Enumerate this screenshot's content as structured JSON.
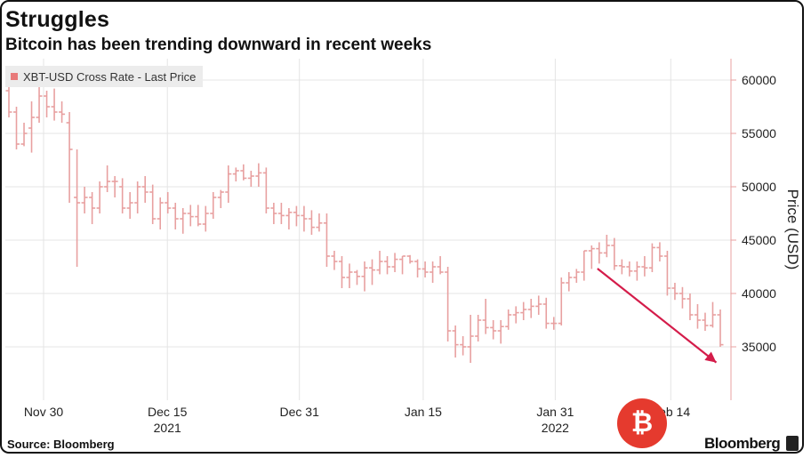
{
  "header": {
    "title": "Struggles",
    "subtitle": "Bitcoin has been trending downward in recent weeks"
  },
  "legend": {
    "label": "XBT-USD Cross Rate - Last Price",
    "color": "#e87a7a"
  },
  "footer": {
    "source": "Source: Bloomberg",
    "brand": "Bloomberg"
  },
  "watermark": {
    "symbol": "₿",
    "color": "#e53a2e"
  },
  "chart_data": {
    "type": "ohlc",
    "title": "Struggles",
    "subtitle": "Bitcoin has been trending downward in recent weeks",
    "ylabel": "Price (USD)",
    "ylim": [
      30000,
      62000
    ],
    "yticks": [
      35000,
      40000,
      45000,
      50000,
      55000,
      60000
    ],
    "xticks": [
      {
        "label": "Nov 30",
        "day": 0
      },
      {
        "label": "Dec 15",
        "day": 15,
        "year": "2021"
      },
      {
        "label": "Dec 31",
        "day": 31
      },
      {
        "label": "Jan 15",
        "day": 46
      },
      {
        "label": "Jan 31",
        "day": 62,
        "year": "2022"
      },
      {
        "label": "Feb 14",
        "day": 76
      }
    ],
    "series_color": "#e8a0a0",
    "ohlc": [
      [
        59000,
        59500,
        56500,
        57000
      ],
      [
        57000,
        57500,
        53500,
        54000
      ],
      [
        54000,
        56000,
        53800,
        55000
      ],
      [
        55500,
        58000,
        53200,
        56500
      ],
      [
        56500,
        59500,
        56000,
        58500
      ],
      [
        58500,
        59000,
        56500,
        57500
      ],
      [
        57500,
        59200,
        56200,
        57000
      ],
      [
        57000,
        58000,
        56000,
        56800
      ],
      [
        56000,
        57000,
        48500,
        53500
      ],
      [
        49000,
        53500,
        42500,
        48500
      ],
      [
        48500,
        50000,
        47500,
        49000
      ],
      [
        49000,
        49500,
        46500,
        48000
      ],
      [
        48000,
        50500,
        47500,
        50000
      ],
      [
        50000,
        52000,
        49500,
        50500
      ],
      [
        50500,
        51000,
        49000,
        50500
      ],
      [
        50000,
        50800,
        47500,
        48000
      ],
      [
        48000,
        49500,
        47000,
        48500
      ],
      [
        48500,
        50500,
        47500,
        50000
      ],
      [
        50000,
        51000,
        48500,
        49500
      ],
      [
        49500,
        50200,
        46500,
        47000
      ],
      [
        47000,
        49000,
        46000,
        48500
      ],
      [
        48500,
        49500,
        47500,
        48000
      ],
      [
        48000,
        48500,
        46000,
        47000
      ],
      [
        47000,
        48000,
        45600,
        47500
      ],
      [
        47500,
        48300,
        46300,
        47200
      ],
      [
        47200,
        48300,
        46300,
        46500
      ],
      [
        46500,
        48200,
        45800,
        47500
      ],
      [
        47500,
        49500,
        47000,
        49000
      ],
      [
        49000,
        49700,
        48000,
        49500
      ],
      [
        49500,
        52000,
        48500,
        51200
      ],
      [
        51200,
        51800,
        50500,
        51500
      ],
      [
        51500,
        52100,
        50600,
        50800
      ],
      [
        50800,
        51500,
        50000,
        51000
      ],
      [
        51000,
        52200,
        50000,
        51300
      ],
      [
        51300,
        51800,
        47500,
        48000
      ],
      [
        48000,
        48500,
        46500,
        47500
      ],
      [
        47500,
        48500,
        46500,
        47300
      ],
      [
        47300,
        48000,
        46000,
        47600
      ],
      [
        47600,
        48200,
        46300,
        47300
      ],
      [
        47300,
        48200,
        45800,
        47000
      ],
      [
        47000,
        47800,
        45500,
        46200
      ],
      [
        46200,
        47500,
        45800,
        46600
      ],
      [
        46600,
        47500,
        42500,
        43500
      ],
      [
        43500,
        44000,
        42200,
        43000
      ],
      [
        43000,
        43500,
        40500,
        41500
      ],
      [
        41500,
        42800,
        40500,
        42000
      ],
      [
        42000,
        42200,
        40800,
        41600
      ],
      [
        41600,
        43000,
        40200,
        42400
      ],
      [
        42400,
        43200,
        40800,
        42200
      ],
      [
        42200,
        44000,
        41800,
        43000
      ],
      [
        43000,
        43500,
        41800,
        42500
      ],
      [
        42500,
        43800,
        42000,
        43200
      ],
      [
        43200,
        43500,
        41800,
        43500
      ],
      [
        43500,
        43600,
        42800,
        43000
      ],
      [
        43000,
        43200,
        41500,
        42300
      ],
      [
        42300,
        43000,
        41500,
        42000
      ],
      [
        42000,
        43000,
        41000,
        42500
      ],
      [
        42500,
        43500,
        41800,
        42000
      ],
      [
        42000,
        42500,
        35500,
        36500
      ],
      [
        36500,
        37000,
        34000,
        35200
      ],
      [
        35200,
        36000,
        34200,
        35000
      ],
      [
        35000,
        38000,
        33500,
        36000
      ],
      [
        36000,
        38000,
        35500,
        37500
      ],
      [
        37500,
        39500,
        36200,
        36800
      ],
      [
        36800,
        37500,
        35700,
        36500
      ],
      [
        36500,
        37500,
        35300,
        36900
      ],
      [
        36900,
        38500,
        36600,
        38000
      ],
      [
        38000,
        38800,
        37200,
        38200
      ],
      [
        38200,
        39200,
        37500,
        38500
      ],
      [
        38500,
        39500,
        37700,
        38800
      ],
      [
        38800,
        39800,
        38000,
        39000
      ],
      [
        39000,
        39600,
        36700,
        37200
      ],
      [
        37200,
        37800,
        36600,
        37200
      ],
      [
        37200,
        41500,
        37000,
        41000
      ],
      [
        41000,
        42000,
        40200,
        41500
      ],
      [
        41500,
        42300,
        41000,
        42000
      ],
      [
        42000,
        44000,
        41200,
        44000
      ],
      [
        44000,
        44500,
        42300,
        44200
      ],
      [
        44200,
        44800,
        42800,
        43800
      ],
      [
        43800,
        45500,
        43400,
        44500
      ],
      [
        44500,
        45200,
        42200,
        42600
      ],
      [
        42600,
        43200,
        41800,
        42500
      ],
      [
        42500,
        43000,
        41600,
        42100
      ],
      [
        42100,
        43000,
        41200,
        42500
      ],
      [
        42500,
        43500,
        41600,
        42400
      ],
      [
        42400,
        44700,
        42000,
        44300
      ],
      [
        44300,
        44800,
        43000,
        43500
      ],
      [
        43500,
        44000,
        39800,
        40500
      ],
      [
        40500,
        41000,
        39400,
        40000
      ],
      [
        40000,
        40600,
        38600,
        39500
      ],
      [
        39500,
        40000,
        37500,
        38000
      ],
      [
        38000,
        39000,
        36700,
        37500
      ],
      [
        37500,
        38200,
        36500,
        37000
      ],
      [
        37000,
        39200,
        36800,
        38000
      ],
      [
        38000,
        38500,
        35000,
        35200
      ]
    ],
    "annotation": {
      "type": "arrow",
      "direction": "down-right",
      "color": "#d41c4a"
    }
  }
}
